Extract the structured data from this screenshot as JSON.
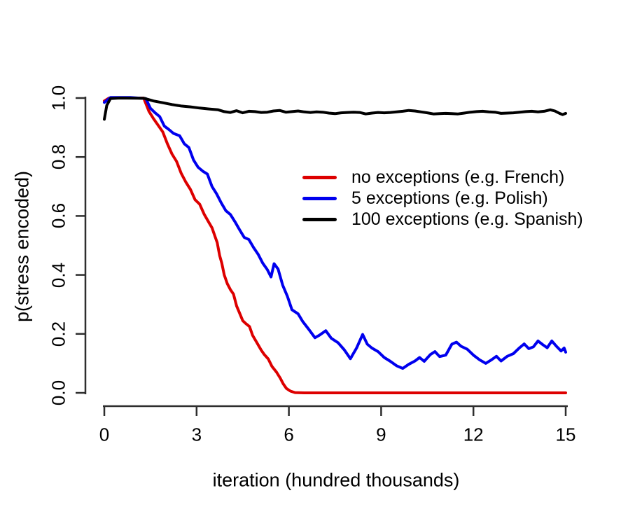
{
  "chart_data": {
    "type": "line",
    "title": "",
    "xlabel": "iteration (hundred thousands)",
    "ylabel": "p(stress encoded)",
    "xlim": [
      0,
      15
    ],
    "ylim": [
      0.0,
      1.0
    ],
    "xticks": [
      "0",
      "3",
      "6",
      "9",
      "12",
      "15"
    ],
    "xtick_values": [
      0,
      3,
      6,
      9,
      12,
      15
    ],
    "yticks": [
      "0.0",
      "0.2",
      "0.4",
      "0.6",
      "0.8",
      "1.0"
    ],
    "ytick_values": [
      0.0,
      0.2,
      0.4,
      0.6,
      0.8,
      1.0
    ],
    "grid": "off",
    "legend_position": "center-right",
    "axis_color": "#2e2e2e",
    "series": [
      {
        "name": "no exceptions (e.g. French)",
        "color": "#dd0000",
        "points": [
          [
            0,
            0.99
          ],
          [
            0.15,
            1.0
          ],
          [
            1.28,
            1.0
          ],
          [
            1.45,
            0.955
          ],
          [
            1.6,
            0.93
          ],
          [
            1.9,
            0.885
          ],
          [
            2.05,
            0.845
          ],
          [
            2.2,
            0.81
          ],
          [
            2.35,
            0.785
          ],
          [
            2.5,
            0.745
          ],
          [
            2.65,
            0.715
          ],
          [
            2.8,
            0.69
          ],
          [
            2.95,
            0.655
          ],
          [
            3.1,
            0.64
          ],
          [
            3.25,
            0.605
          ],
          [
            3.4,
            0.578
          ],
          [
            3.5,
            0.56
          ],
          [
            3.6,
            0.53
          ],
          [
            3.67,
            0.51
          ],
          [
            3.75,
            0.465
          ],
          [
            3.82,
            0.44
          ],
          [
            3.9,
            0.4
          ],
          [
            4.0,
            0.37
          ],
          [
            4.1,
            0.35
          ],
          [
            4.2,
            0.335
          ],
          [
            4.3,
            0.295
          ],
          [
            4.4,
            0.27
          ],
          [
            4.5,
            0.245
          ],
          [
            4.6,
            0.235
          ],
          [
            4.72,
            0.225
          ],
          [
            4.82,
            0.195
          ],
          [
            4.95,
            0.172
          ],
          [
            5.1,
            0.145
          ],
          [
            5.2,
            0.13
          ],
          [
            5.33,
            0.115
          ],
          [
            5.45,
            0.09
          ],
          [
            5.6,
            0.07
          ],
          [
            5.72,
            0.05
          ],
          [
            5.82,
            0.03
          ],
          [
            5.92,
            0.015
          ],
          [
            6.05,
            0.006
          ],
          [
            6.2,
            0.001
          ],
          [
            6.5,
            0.0
          ],
          [
            15,
            0.0
          ]
        ]
      },
      {
        "name": "5 exceptions (e.g. Polish)",
        "color": "#0000ee",
        "points": [
          [
            0,
            0.985
          ],
          [
            0.2,
            1.002
          ],
          [
            0.85,
            1.002
          ],
          [
            1.35,
            0.998
          ],
          [
            1.5,
            0.965
          ],
          [
            1.65,
            0.95
          ],
          [
            1.8,
            0.937
          ],
          [
            1.95,
            0.905
          ],
          [
            2.1,
            0.893
          ],
          [
            2.25,
            0.88
          ],
          [
            2.45,
            0.872
          ],
          [
            2.6,
            0.845
          ],
          [
            2.75,
            0.832
          ],
          [
            2.9,
            0.79
          ],
          [
            3.05,
            0.765
          ],
          [
            3.2,
            0.752
          ],
          [
            3.35,
            0.742
          ],
          [
            3.5,
            0.7
          ],
          [
            3.65,
            0.675
          ],
          [
            3.8,
            0.645
          ],
          [
            3.95,
            0.618
          ],
          [
            4.1,
            0.605
          ],
          [
            4.25,
            0.58
          ],
          [
            4.4,
            0.553
          ],
          [
            4.55,
            0.527
          ],
          [
            4.7,
            0.52
          ],
          [
            4.85,
            0.493
          ],
          [
            5.0,
            0.47
          ],
          [
            5.15,
            0.44
          ],
          [
            5.3,
            0.418
          ],
          [
            5.42,
            0.393
          ],
          [
            5.52,
            0.438
          ],
          [
            5.65,
            0.42
          ],
          [
            5.8,
            0.365
          ],
          [
            5.95,
            0.328
          ],
          [
            6.1,
            0.282
          ],
          [
            6.3,
            0.268
          ],
          [
            6.45,
            0.242
          ],
          [
            6.65,
            0.215
          ],
          [
            6.85,
            0.187
          ],
          [
            7.0,
            0.196
          ],
          [
            7.2,
            0.211
          ],
          [
            7.38,
            0.185
          ],
          [
            7.6,
            0.17
          ],
          [
            7.8,
            0.146
          ],
          [
            8.0,
            0.116
          ],
          [
            8.2,
            0.152
          ],
          [
            8.4,
            0.198
          ],
          [
            8.55,
            0.165
          ],
          [
            8.7,
            0.152
          ],
          [
            8.9,
            0.14
          ],
          [
            9.1,
            0.12
          ],
          [
            9.3,
            0.107
          ],
          [
            9.5,
            0.092
          ],
          [
            9.7,
            0.083
          ],
          [
            9.9,
            0.097
          ],
          [
            10.1,
            0.108
          ],
          [
            10.25,
            0.12
          ],
          [
            10.4,
            0.107
          ],
          [
            10.6,
            0.13
          ],
          [
            10.75,
            0.14
          ],
          [
            10.9,
            0.123
          ],
          [
            11.1,
            0.128
          ],
          [
            11.3,
            0.165
          ],
          [
            11.45,
            0.172
          ],
          [
            11.6,
            0.158
          ],
          [
            11.8,
            0.148
          ],
          [
            12.0,
            0.128
          ],
          [
            12.2,
            0.112
          ],
          [
            12.4,
            0.1
          ],
          [
            12.6,
            0.113
          ],
          [
            12.75,
            0.124
          ],
          [
            12.9,
            0.108
          ],
          [
            13.1,
            0.124
          ],
          [
            13.3,
            0.133
          ],
          [
            13.5,
            0.153
          ],
          [
            13.65,
            0.166
          ],
          [
            13.8,
            0.15
          ],
          [
            13.95,
            0.156
          ],
          [
            14.1,
            0.176
          ],
          [
            14.25,
            0.164
          ],
          [
            14.4,
            0.153
          ],
          [
            14.55,
            0.176
          ],
          [
            14.7,
            0.158
          ],
          [
            14.85,
            0.142
          ],
          [
            14.95,
            0.152
          ],
          [
            15,
            0.138
          ]
        ]
      },
      {
        "name": "100 exceptions (e.g. Spanish)",
        "color": "#000000",
        "points": [
          [
            0,
            0.928
          ],
          [
            0.08,
            0.975
          ],
          [
            0.2,
            0.998
          ],
          [
            0.5,
            1.0
          ],
          [
            1.3,
            0.999
          ],
          [
            1.6,
            0.99
          ],
          [
            1.9,
            0.984
          ],
          [
            2.2,
            0.978
          ],
          [
            2.5,
            0.973
          ],
          [
            2.8,
            0.97
          ],
          [
            3.1,
            0.966
          ],
          [
            3.4,
            0.963
          ],
          [
            3.7,
            0.96
          ],
          [
            3.9,
            0.954
          ],
          [
            4.1,
            0.951
          ],
          [
            4.3,
            0.957
          ],
          [
            4.5,
            0.95
          ],
          [
            4.7,
            0.955
          ],
          [
            4.9,
            0.954
          ],
          [
            5.1,
            0.951
          ],
          [
            5.3,
            0.952
          ],
          [
            5.5,
            0.956
          ],
          [
            5.7,
            0.958
          ],
          [
            5.9,
            0.952
          ],
          [
            6.1,
            0.954
          ],
          [
            6.3,
            0.956
          ],
          [
            6.5,
            0.953
          ],
          [
            6.7,
            0.951
          ],
          [
            6.9,
            0.953
          ],
          [
            7.1,
            0.952
          ],
          [
            7.3,
            0.949
          ],
          [
            7.5,
            0.947
          ],
          [
            7.7,
            0.95
          ],
          [
            7.9,
            0.951
          ],
          [
            8.1,
            0.952
          ],
          [
            8.3,
            0.951
          ],
          [
            8.5,
            0.946
          ],
          [
            8.7,
            0.949
          ],
          [
            8.9,
            0.951
          ],
          [
            9.1,
            0.95
          ],
          [
            9.3,
            0.951
          ],
          [
            9.5,
            0.953
          ],
          [
            9.7,
            0.955
          ],
          [
            9.9,
            0.958
          ],
          [
            10.1,
            0.956
          ],
          [
            10.3,
            0.953
          ],
          [
            10.5,
            0.95
          ],
          [
            10.7,
            0.946
          ],
          [
            10.9,
            0.947
          ],
          [
            11.1,
            0.948
          ],
          [
            11.3,
            0.947
          ],
          [
            11.5,
            0.946
          ],
          [
            11.7,
            0.949
          ],
          [
            11.9,
            0.952
          ],
          [
            12.1,
            0.954
          ],
          [
            12.3,
            0.955
          ],
          [
            12.5,
            0.953
          ],
          [
            12.7,
            0.952
          ],
          [
            12.9,
            0.948
          ],
          [
            13.1,
            0.949
          ],
          [
            13.3,
            0.95
          ],
          [
            13.5,
            0.952
          ],
          [
            13.7,
            0.954
          ],
          [
            13.9,
            0.955
          ],
          [
            14.1,
            0.953
          ],
          [
            14.3,
            0.955
          ],
          [
            14.5,
            0.96
          ],
          [
            14.65,
            0.956
          ],
          [
            14.8,
            0.948
          ],
          [
            14.9,
            0.944
          ],
          [
            15,
            0.948
          ]
        ]
      }
    ],
    "legend_items": [
      {
        "label": "no exceptions (e.g. French)",
        "color": "#dd0000"
      },
      {
        "label": "5 exceptions (e.g. Polish)",
        "color": "#0000ee"
      },
      {
        "label": "100 exceptions (e.g. Spanish)",
        "color": "#000000"
      }
    ]
  }
}
